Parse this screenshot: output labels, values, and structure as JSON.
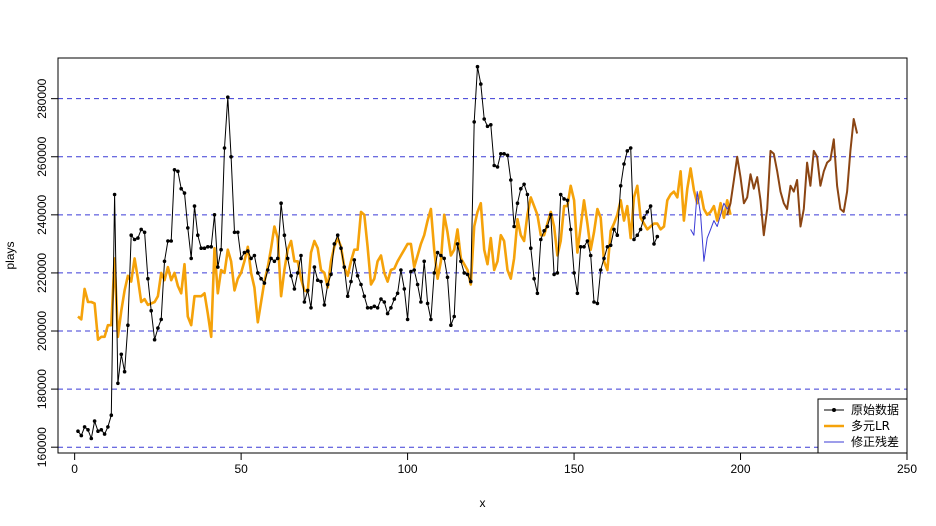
{
  "chart_data": {
    "type": "line",
    "title": "",
    "xlabel": "x",
    "ylabel": "plays",
    "xlim": [
      -5,
      250
    ],
    "ylim": [
      158000,
      294000
    ],
    "x_ticks": [
      0,
      50,
      100,
      150,
      200,
      250
    ],
    "y_ticks": [
      160000,
      180000,
      200000,
      220000,
      240000,
      260000,
      280000
    ],
    "hlines": [
      160000,
      180000,
      200000,
      220000,
      240000,
      260000,
      280000
    ],
    "grid": "horizontal dashed",
    "legend_position": "bottom-right",
    "colors": {
      "raw": "#000000",
      "lr": "#f5a20a",
      "resid": "#3b3bd6",
      "forecast": "#8b4513",
      "hline": "#3b3bd6"
    },
    "series": [
      {
        "name": "原始数据",
        "x_start": 1,
        "values": [
          165500,
          164000,
          167000,
          166000,
          163000,
          169000,
          165500,
          166000,
          164500,
          167000,
          171000,
          247000,
          182000,
          192000,
          186000,
          202000,
          233000,
          231500,
          232000,
          235000,
          234000,
          218000,
          207000,
          197000,
          201000,
          204000,
          224000,
          231000,
          231000,
          255500,
          255000,
          249000,
          247500,
          235500,
          225000,
          243000,
          233000,
          228500,
          228500,
          229000,
          229000,
          240000,
          222000,
          228000,
          263000,
          280500,
          260000,
          234000,
          234000,
          225000,
          227000,
          227500,
          225000,
          226000,
          220000,
          218000,
          216500,
          221000,
          225000,
          224000,
          225000,
          244000,
          233000,
          225000,
          219000,
          214500,
          220000,
          226000,
          210000,
          214000,
          208000,
          222000,
          217500,
          217000,
          209000,
          216000,
          219500,
          230000,
          233000,
          228500,
          222000,
          212000,
          217000,
          224500,
          219000,
          216000,
          212000,
          208000,
          208000,
          208500,
          208000,
          211000,
          210000,
          206000,
          208000,
          211000,
          213000,
          221000,
          214500,
          204000,
          220500,
          221000,
          216000,
          210000,
          224000,
          209500,
          204000,
          220000,
          227000,
          226000,
          225000,
          218500,
          202000,
          205000,
          230000,
          224000,
          220000,
          219500,
          217000,
          272000,
          291000,
          285000,
          273000,
          270500,
          271000,
          257000,
          256500,
          261000,
          261000,
          260500,
          252000,
          236000,
          244000,
          249000,
          250500,
          247000,
          228500,
          218000,
          213000,
          231500,
          234500,
          236000,
          240000,
          219500,
          220000,
          247000,
          245500,
          245000,
          235000,
          220000,
          213000,
          229000,
          229000,
          231000,
          226000,
          210000,
          209500,
          221000,
          225000,
          229000,
          229500,
          235000,
          233000,
          250000,
          257500,
          262000,
          263000,
          231500,
          233000,
          235000,
          239000,
          241000,
          243000,
          230000,
          232500
        ],
        "note_on_values": "raw data estimated from plot"
      },
      {
        "name": "多元LR",
        "x_start": 1,
        "values": [
          205000,
          204000,
          214500,
          210000,
          210000,
          209500,
          197000,
          198000,
          198000,
          202000,
          202000,
          225000,
          198000,
          207000,
          214000,
          219000,
          217000,
          225000,
          218000,
          210000,
          211000,
          209000,
          209500,
          210000,
          212000,
          220000,
          217500,
          222000,
          217500,
          220000,
          215500,
          213000,
          223000,
          205000,
          202000,
          212000,
          212000,
          212000,
          213000,
          206000,
          198000,
          228500,
          213000,
          221000,
          220000,
          228000,
          224000,
          214000,
          218000,
          220000,
          224000,
          229000,
          220000,
          215000,
          203000,
          210000,
          217000,
          222000,
          228500,
          236000,
          232000,
          212000,
          221000,
          228000,
          231000,
          224000,
          224000,
          218000,
          214000,
          213500,
          227000,
          231000,
          228500,
          221000,
          220000,
          215000,
          224000,
          229000,
          232000,
          229000,
          222000,
          219000,
          224000,
          228000,
          228000,
          241000,
          240000,
          229000,
          216000,
          218000,
          224000,
          226000,
          220000,
          217000,
          221000,
          221500,
          224000,
          226000,
          228000,
          230000,
          230000,
          222000,
          226000,
          230000,
          233000,
          238000,
          242000,
          228000,
          218000,
          224000,
          240000,
          234000,
          226000,
          228000,
          235000,
          225000,
          223000,
          221000,
          216000,
          236000,
          241000,
          244000,
          228000,
          223000,
          232000,
          221000,
          224000,
          233000,
          231000,
          221000,
          218000,
          225000,
          238500,
          233000,
          231000,
          240000,
          246000,
          243000,
          240000,
          233000,
          233000,
          237000,
          241000,
          236000,
          226000,
          231000,
          243000,
          243000,
          250000,
          245000,
          227000,
          236000,
          245000,
          237000,
          228000,
          234000,
          242000,
          239000,
          224000,
          221000,
          234500,
          237000,
          240000,
          245000,
          238000,
          243000,
          232000,
          246000,
          250000,
          239000,
          237000,
          235000,
          236000,
          237000,
          237000,
          235000,
          236000,
          245000,
          247000,
          248000,
          246000,
          255000,
          238000,
          249000,
          256000,
          248500,
          244000,
          248000,
          242000,
          240000,
          241000,
          243000,
          238000,
          244000,
          239000,
          245000,
          240000
        ],
        "note_on_values": "fitted values estimated from plot"
      },
      {
        "name": "修正残差",
        "x_start": 185,
        "values": [
          235000,
          233000,
          248000,
          240000,
          224000,
          232000,
          235000,
          238000,
          236000,
          240000,
          244000,
          242000,
          244000
        ],
        "note_on_values": "residual-corrected values estimated from plot"
      },
      {
        "x_start": 196,
        "values": [
          240000,
          244000,
          252000,
          260000,
          253000,
          244000,
          246000,
          254000,
          249000,
          253000,
          245000,
          233000,
          242000,
          262000,
          261000,
          255000,
          248000,
          244000,
          242000,
          250000,
          248000,
          252000,
          236000,
          242000,
          258000,
          250000,
          262000,
          260000,
          250000,
          255000,
          258000,
          259000,
          266000,
          250000,
          242000,
          241000,
          248000,
          262000,
          273000,
          268000
        ],
        "note_on_values": "continuation of 修正残差 drawn in brown (no separate legend entry)"
      }
    ]
  },
  "legend": {
    "items": [
      {
        "label": "原始数据",
        "color": "#000000"
      },
      {
        "label": "多元LR",
        "color": "#f5a20a"
      },
      {
        "label": "修正残差",
        "color": "#3b3bd6"
      }
    ]
  }
}
